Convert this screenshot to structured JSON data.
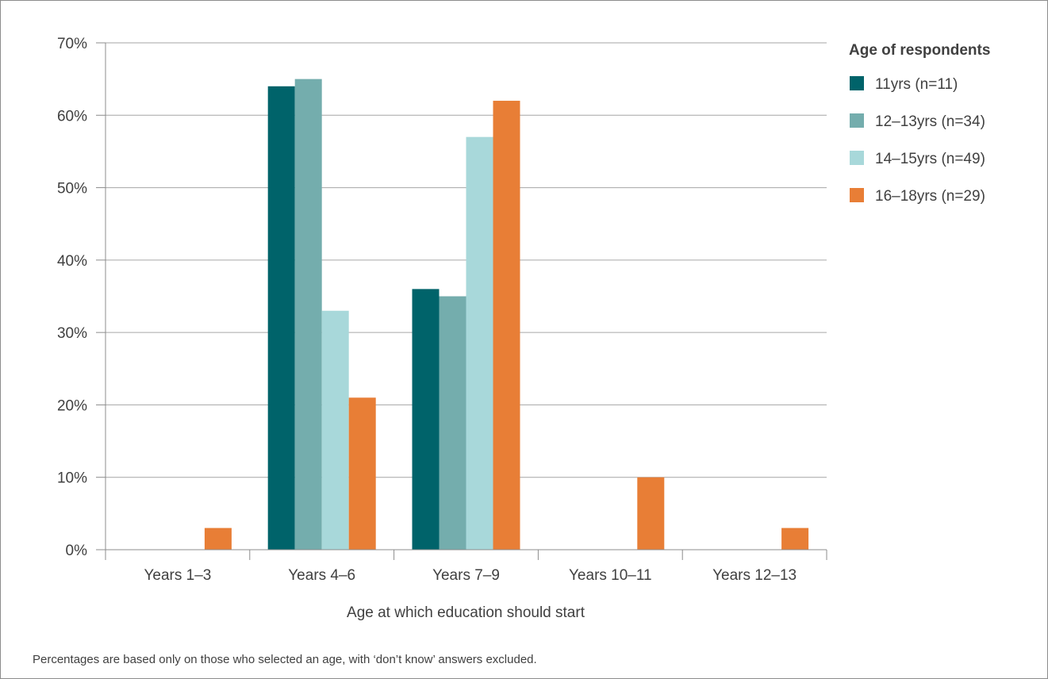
{
  "chart_data": {
    "type": "bar",
    "categories": [
      "Years 1–3",
      "Years 4–6",
      "Years 7–9",
      "Years 10–11",
      "Years 12–13"
    ],
    "series": [
      {
        "name": "11yrs (n=11)",
        "color": "#00636a",
        "values": [
          0,
          64,
          36,
          0,
          0
        ]
      },
      {
        "name": "12–13yrs (n=34)",
        "color": "#74adad",
        "values": [
          0,
          65,
          35,
          0,
          0
        ]
      },
      {
        "name": "14–15yrs (n=49)",
        "color": "#a8d8da",
        "values": [
          0,
          33,
          57,
          0,
          0
        ]
      },
      {
        "name": "16–18yrs (n=29)",
        "color": "#e87e36",
        "values": [
          3,
          21,
          62,
          10,
          3
        ]
      }
    ],
    "ylim": [
      0,
      70
    ],
    "yticks": [
      "0%",
      "10%",
      "20%",
      "30%",
      "40%",
      "50%",
      "60%",
      "70%"
    ],
    "xlabel": "Age at which education should start",
    "ylabel": "",
    "grid": true,
    "legend": {
      "title": "Age of respondents",
      "placement": "right"
    },
    "footnote": "Percentages are based only on those who selected an age, with ‘don’t know’ answers excluded."
  }
}
